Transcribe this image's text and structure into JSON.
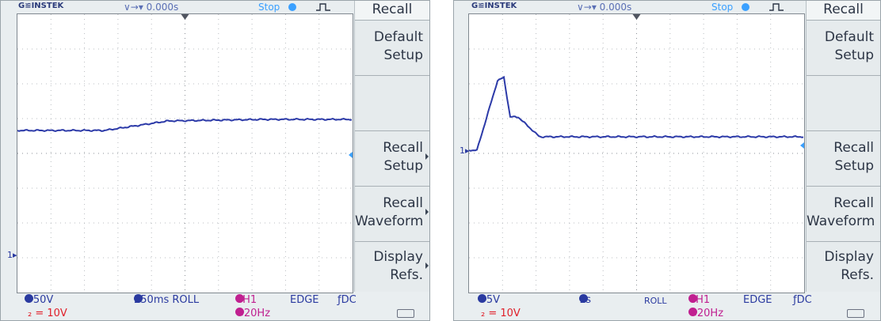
{
  "left": {
    "brand": "G≌INSTEK",
    "time_pos": "∨→▾ 0.000s",
    "status": "Stop",
    "menu": {
      "header": "Recall",
      "b1_l1": "Default",
      "b1_l2": "Setup",
      "b3_l1": "Recall",
      "b3_l2": "Setup",
      "b4_l1": "Recall",
      "b4_l2": "Waveform",
      "b5_l1": "Display",
      "b5_l2": "Refs."
    },
    "ch1_scale": "=50V",
    "ch2_scale": "₂ = 10V",
    "timebase": "250ms ROLL",
    "trig_src": "CH1",
    "trig_type": "EDGE",
    "coupling": "ƒDC",
    "filter": "<20Hz",
    "marker": "1▸"
  },
  "right": {
    "brand": "G≌INSTEK",
    "time_pos": "∨→▾ 0.000s",
    "status": "Stop",
    "menu": {
      "header": "Recall",
      "b1_l1": "Default",
      "b1_l2": "Setup",
      "b3_l1": "Recall",
      "b3_l2": "Setup",
      "b4_l1": "Recall",
      "b4_l2": "Waveform",
      "b5_l1": "Display",
      "b5_l2": "Refs."
    },
    "ch1_scale": "=5V",
    "ch2_scale": "₂ = 10V",
    "timebase": "1s",
    "roll": "ROLL",
    "trig_src": "CH1",
    "trig_type": "EDGE",
    "coupling": "ƒDC",
    "filter": "<20Hz",
    "marker": "1▸"
  },
  "colors": {
    "trace": "#2c3aa8",
    "accent_blue": "#3aa0ff",
    "ch2_red": "#e0202a"
  }
}
